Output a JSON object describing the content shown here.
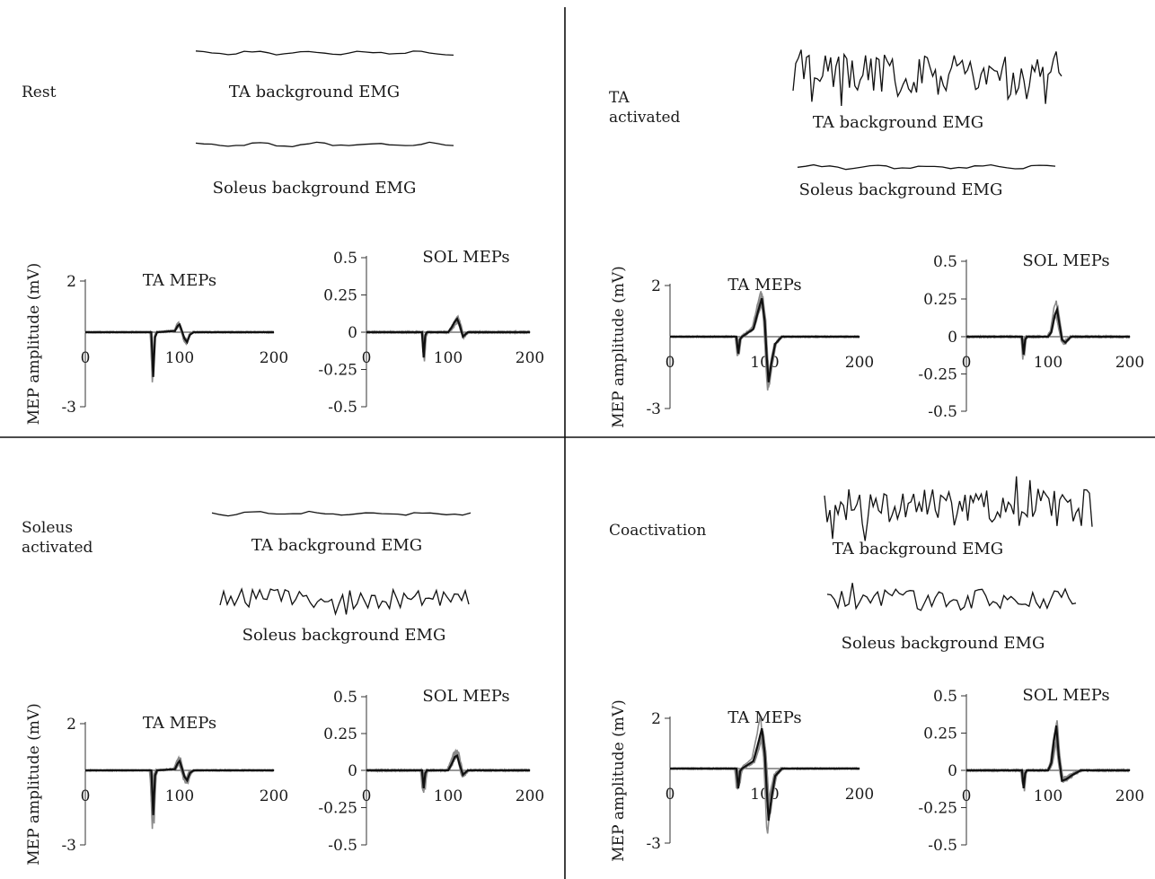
{
  "chart_data": [
    {
      "condition": "Rest",
      "type": "line",
      "ta_trace_label": "TA background EMG",
      "sol_trace_label": "Soleus background EMG",
      "ta_bg_amp": 0.1,
      "sol_bg_amp": 0.1,
      "ta_mep": {
        "title": "TA MEPs",
        "ylabel": "MEP amplitude (mV)",
        "xlim": [
          0,
          200
        ],
        "ylim": [
          -3,
          2
        ],
        "xticks": [
          0,
          100,
          200
        ],
        "yticks": [
          2,
          -3
        ],
        "x": [
          0,
          70,
          72,
          74,
          76,
          95,
          98,
          100,
          102,
          105,
          108,
          111,
          115,
          125,
          200
        ],
        "y": [
          0,
          0,
          -1.8,
          -0.2,
          0,
          0.05,
          0.25,
          0.3,
          0.1,
          -0.25,
          -0.4,
          -0.1,
          0,
          0,
          0
        ]
      },
      "sol_mep": {
        "title": "SOL MEPs",
        "xlim": [
          0,
          200
        ],
        "ylim": [
          -0.5,
          0.5
        ],
        "xticks": [
          0,
          100,
          200
        ],
        "yticks": [
          0.5,
          0.25,
          0,
          -0.25,
          -0.5
        ],
        "x": [
          0,
          68,
          70,
          72,
          74,
          100,
          104,
          108,
          111,
          114,
          118,
          124,
          200
        ],
        "y": [
          0,
          0,
          -0.17,
          -0.02,
          0,
          0,
          0.03,
          0.07,
          0.09,
          0.05,
          -0.03,
          0,
          0
        ]
      }
    },
    {
      "condition": "TA activated",
      "type": "line",
      "ta_trace_label": "TA background EMG",
      "sol_trace_label": "Soleus background EMG",
      "ta_bg_amp": 1.0,
      "sol_bg_amp": 0.1,
      "ta_mep": {
        "title": "TA MEPs",
        "ylabel": "MEP amplitude (mV)",
        "xlim": [
          0,
          200
        ],
        "ylim": [
          -3,
          2
        ],
        "xticks": [
          0,
          100,
          200
        ],
        "yticks": [
          2,
          -3
        ],
        "x": [
          0,
          70,
          72,
          74,
          76,
          88,
          93,
          97,
          100,
          102,
          104,
          107,
          111,
          118,
          130,
          200
        ],
        "y": [
          0,
          0,
          -0.7,
          -0.1,
          0,
          0.3,
          1.0,
          1.5,
          0.6,
          -0.8,
          -1.9,
          -1.1,
          -0.3,
          0,
          0,
          0
        ]
      },
      "sol_mep": {
        "title": "SOL MEPs",
        "xlim": [
          0,
          200
        ],
        "ylim": [
          -0.5,
          0.5
        ],
        "xticks": [
          0,
          100,
          200
        ],
        "yticks": [
          0.5,
          0.25,
          0,
          -0.25,
          -0.5
        ],
        "x": [
          0,
          68,
          70,
          72,
          74,
          100,
          104,
          108,
          111,
          114,
          117,
          121,
          128,
          200
        ],
        "y": [
          0,
          0,
          -0.12,
          -0.02,
          0,
          0,
          0.03,
          0.14,
          0.18,
          0.08,
          -0.02,
          -0.04,
          0,
          0
        ]
      }
    },
    {
      "condition": "Soleus activated",
      "type": "line",
      "ta_trace_label": "TA background EMG",
      "sol_trace_label": "Soleus background EMG",
      "ta_bg_amp": 0.1,
      "sol_bg_amp": 0.5,
      "ta_mep": {
        "title": "TA MEPs",
        "ylabel": "MEP amplitude (mV)",
        "xlim": [
          0,
          200
        ],
        "ylim": [
          -3,
          2
        ],
        "xticks": [
          0,
          100,
          200
        ],
        "yticks": [
          2,
          -3
        ],
        "x": [
          0,
          70,
          72,
          74,
          76,
          95,
          98,
          100,
          102,
          105,
          108,
          111,
          115,
          125,
          200
        ],
        "y": [
          0,
          0,
          -1.8,
          -0.2,
          0,
          0.05,
          0.3,
          0.4,
          0.15,
          -0.25,
          -0.4,
          -0.1,
          0,
          0,
          0
        ]
      },
      "sol_mep": {
        "title": "SOL MEPs",
        "xlim": [
          0,
          200
        ],
        "ylim": [
          -0.5,
          0.5
        ],
        "xticks": [
          0,
          100,
          200
        ],
        "yticks": [
          0.5,
          0.25,
          0,
          -0.25,
          -0.5
        ],
        "x": [
          0,
          68,
          70,
          72,
          74,
          100,
          104,
          108,
          111,
          114,
          118,
          124,
          200
        ],
        "y": [
          0,
          0,
          -0.12,
          -0.02,
          0,
          0,
          0.04,
          0.09,
          0.1,
          0.04,
          -0.03,
          0,
          0
        ]
      }
    },
    {
      "condition": "Coactivation",
      "type": "line",
      "ta_trace_label": "TA background EMG",
      "sol_trace_label": "Soleus background EMG",
      "ta_bg_amp": 1.0,
      "sol_bg_amp": 0.5,
      "ta_mep": {
        "title": "TA MEPs",
        "ylabel": "MEP amplitude (mV)",
        "xlim": [
          0,
          200
        ],
        "ylim": [
          -3,
          2
        ],
        "xticks": [
          0,
          100,
          200
        ],
        "yticks": [
          2,
          -3
        ],
        "x": [
          0,
          70,
          72,
          74,
          76,
          88,
          93,
          97,
          100,
          102,
          104,
          107,
          111,
          118,
          130,
          200
        ],
        "y": [
          0,
          0,
          -0.8,
          -0.1,
          0,
          0.3,
          1.0,
          1.6,
          0.6,
          -0.8,
          -2.1,
          -1.2,
          -0.3,
          0,
          0,
          0
        ]
      },
      "sol_mep": {
        "title": "SOL MEPs",
        "xlim": [
          0,
          200
        ],
        "ylim": [
          -0.5,
          0.5
        ],
        "xticks": [
          0,
          100,
          200
        ],
        "yticks": [
          0.5,
          0.25,
          0,
          -0.25,
          -0.5
        ],
        "x": [
          0,
          68,
          70,
          72,
          74,
          100,
          104,
          107,
          110,
          113,
          117,
          122,
          130,
          140,
          200
        ],
        "y": [
          0,
          0,
          -0.12,
          -0.02,
          0,
          0,
          0.05,
          0.2,
          0.3,
          0.1,
          -0.07,
          -0.06,
          -0.03,
          0,
          0
        ]
      }
    }
  ]
}
